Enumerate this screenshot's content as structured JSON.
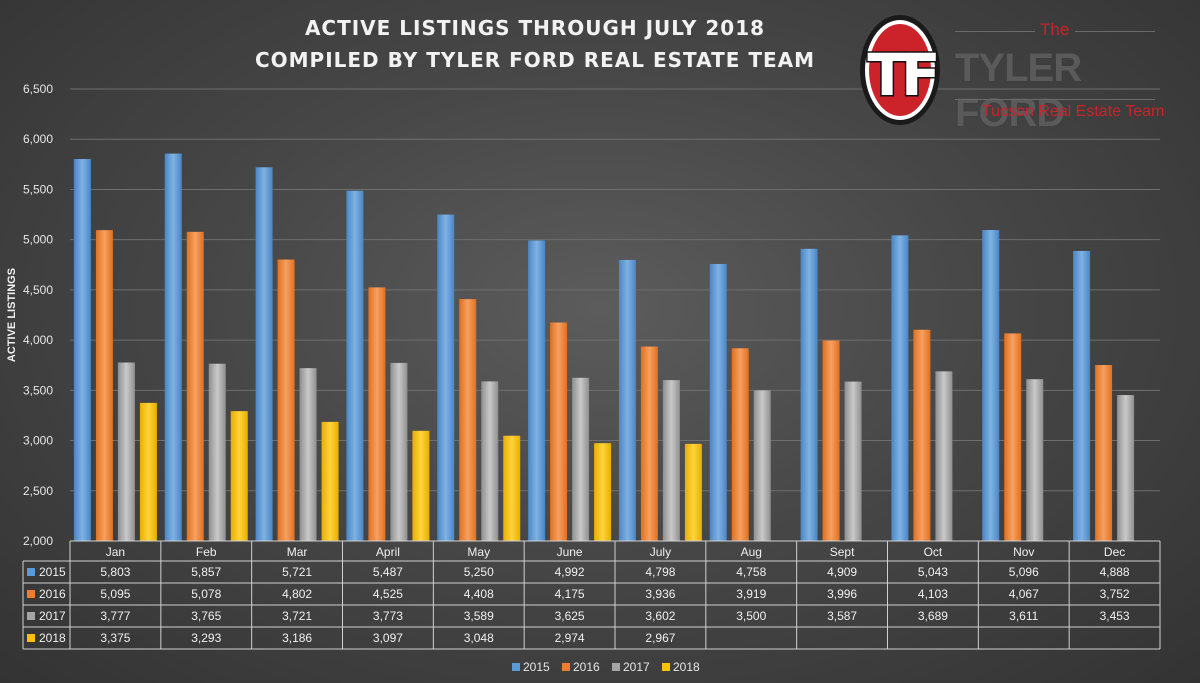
{
  "title_lines": [
    "ACTIVE LISTINGS THROUGH JULY 2018",
    "COMPILED BY TYLER FORD REAL ESTATE TEAM"
  ],
  "logo": {
    "monogram": "TF",
    "the": "The",
    "name": "TYLER FORD",
    "sub": "Tucson Real Estate Team",
    "red": "#cc2229"
  },
  "chart_data": {
    "type": "bar",
    "ylabel": "ACTIVE LISTINGS",
    "ylim": [
      2000,
      6500
    ],
    "ytick_step": 500,
    "grid": true,
    "legend_position": "bottom",
    "data_table": true,
    "categories": [
      "Jan",
      "Feb",
      "Mar",
      "April",
      "May",
      "June",
      "July",
      "Aug",
      "Sept",
      "Oct",
      "Nov",
      "Dec"
    ],
    "series": [
      {
        "name": "2015",
        "color": "#5b9bd5",
        "values": [
          5803,
          5857,
          5721,
          5487,
          5250,
          4992,
          4798,
          4758,
          4909,
          5043,
          5096,
          4888
        ]
      },
      {
        "name": "2016",
        "color": "#ed7d31",
        "values": [
          5095,
          5078,
          4802,
          4525,
          4408,
          4175,
          3936,
          3919,
          3996,
          4103,
          4067,
          3752
        ]
      },
      {
        "name": "2017",
        "color": "#a5a5a5",
        "values": [
          3777,
          3765,
          3721,
          3773,
          3589,
          3625,
          3602,
          3500,
          3587,
          3689,
          3611,
          3453
        ]
      },
      {
        "name": "2018",
        "color": "#ffc000",
        "values": [
          3375,
          3293,
          3186,
          3097,
          3048,
          2974,
          2967,
          null,
          null,
          null,
          null,
          null
        ]
      }
    ]
  }
}
